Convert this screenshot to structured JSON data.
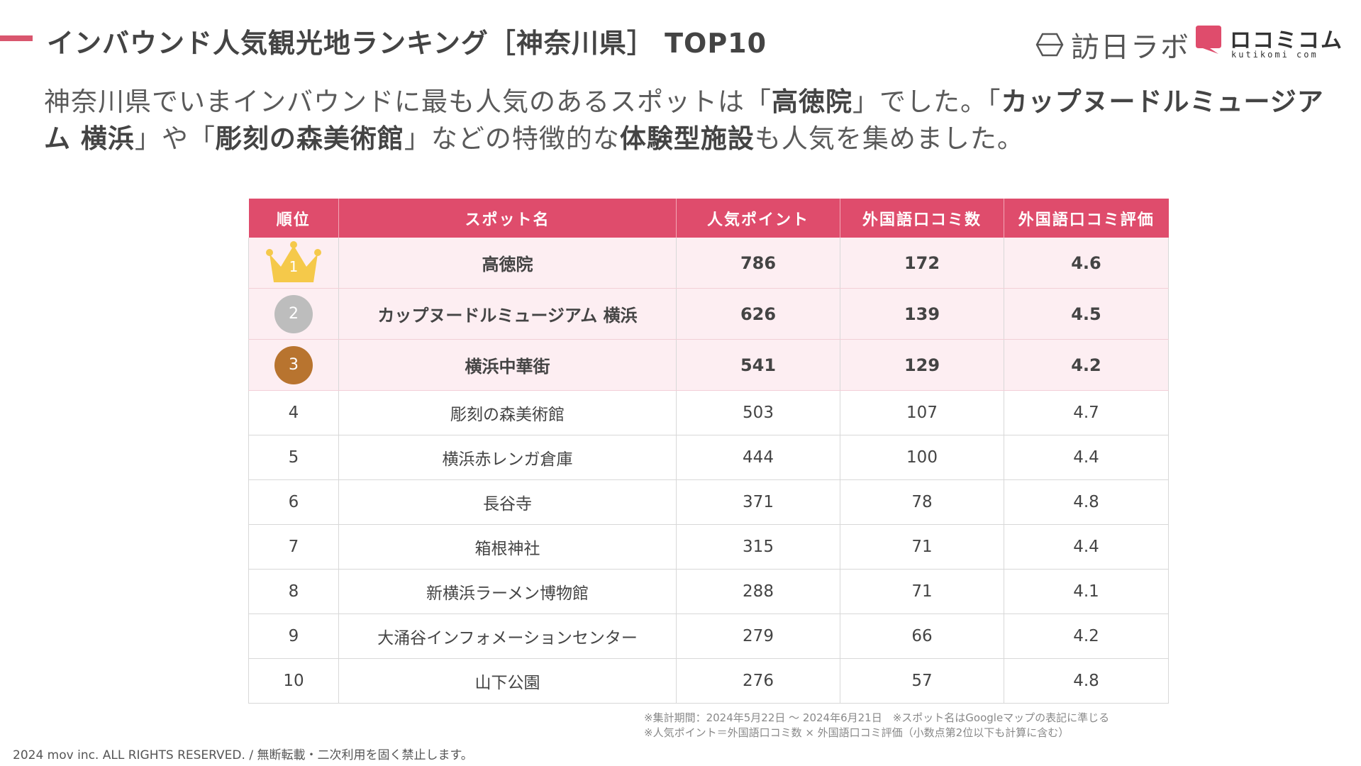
{
  "header": {
    "title": "インバウンド人気観光地ランキング［神奈川県］ TOP10"
  },
  "logos": {
    "houmon": "訪日ラボ",
    "kuchikomi": "ロコミコム",
    "kuchikomi_domain": "kutikomi com"
  },
  "lead": {
    "t1": "神奈川県でいまインバウンドに最も人気のあるスポットは「",
    "b1": "高徳院",
    "t2": "」でした。「",
    "b2": "カップヌードルミュージアム 横浜",
    "t3": "」や「",
    "b3": "彫刻の森美術館",
    "t4": "」などの特徴的な",
    "b4": "体験型施設",
    "t5": "も人気を集めました。"
  },
  "table": {
    "columns": [
      "順位",
      "スポット名",
      "人気ポイント",
      "外国語口コミ数",
      "外国語口コミ評価"
    ],
    "rows": [
      {
        "rank": "1",
        "name": "高徳院",
        "points": "786",
        "reviews": "172",
        "rating": "4.6"
      },
      {
        "rank": "2",
        "name": "カップヌードルミュージアム 横浜",
        "points": "626",
        "reviews": "139",
        "rating": "4.5"
      },
      {
        "rank": "3",
        "name": "横浜中華街",
        "points": "541",
        "reviews": "129",
        "rating": "4.2"
      },
      {
        "rank": "4",
        "name": "彫刻の森美術館",
        "points": "503",
        "reviews": "107",
        "rating": "4.7"
      },
      {
        "rank": "5",
        "name": "横浜赤レンガ倉庫",
        "points": "444",
        "reviews": "100",
        "rating": "4.4"
      },
      {
        "rank": "6",
        "name": "長谷寺",
        "points": "371",
        "reviews": "78",
        "rating": "4.8"
      },
      {
        "rank": "7",
        "name": "箱根神社",
        "points": "315",
        "reviews": "71",
        "rating": "4.4"
      },
      {
        "rank": "8",
        "name": "新横浜ラーメン博物館",
        "points": "288",
        "reviews": "71",
        "rating": "4.1"
      },
      {
        "rank": "9",
        "name": "大涌谷インフォメーションセンター",
        "points": "279",
        "reviews": "66",
        "rating": "4.2"
      },
      {
        "rank": "10",
        "name": "山下公園",
        "points": "276",
        "reviews": "57",
        "rating": "4.8"
      }
    ]
  },
  "notes": {
    "line1": "※集計期間：2024年5月22日 〜 2024年6月21日　※スポット名はGoogleマップの表記に準じる",
    "line2": "※人気ポイント＝外国語口コミ数 × 外国語口コミ評価（小数点第2位以下も計算に含む）"
  },
  "footer": {
    "copyright": "2024 mov inc. ALL RIGHTS RESERVED. / 無断転載・二次利用を固く禁止します。"
  },
  "colors": {
    "accent": "#df4c6c",
    "highlight_row": "#fdeef2",
    "gold": "#f5c94a",
    "silver": "#bdbdbd",
    "bronze": "#b8742f"
  }
}
